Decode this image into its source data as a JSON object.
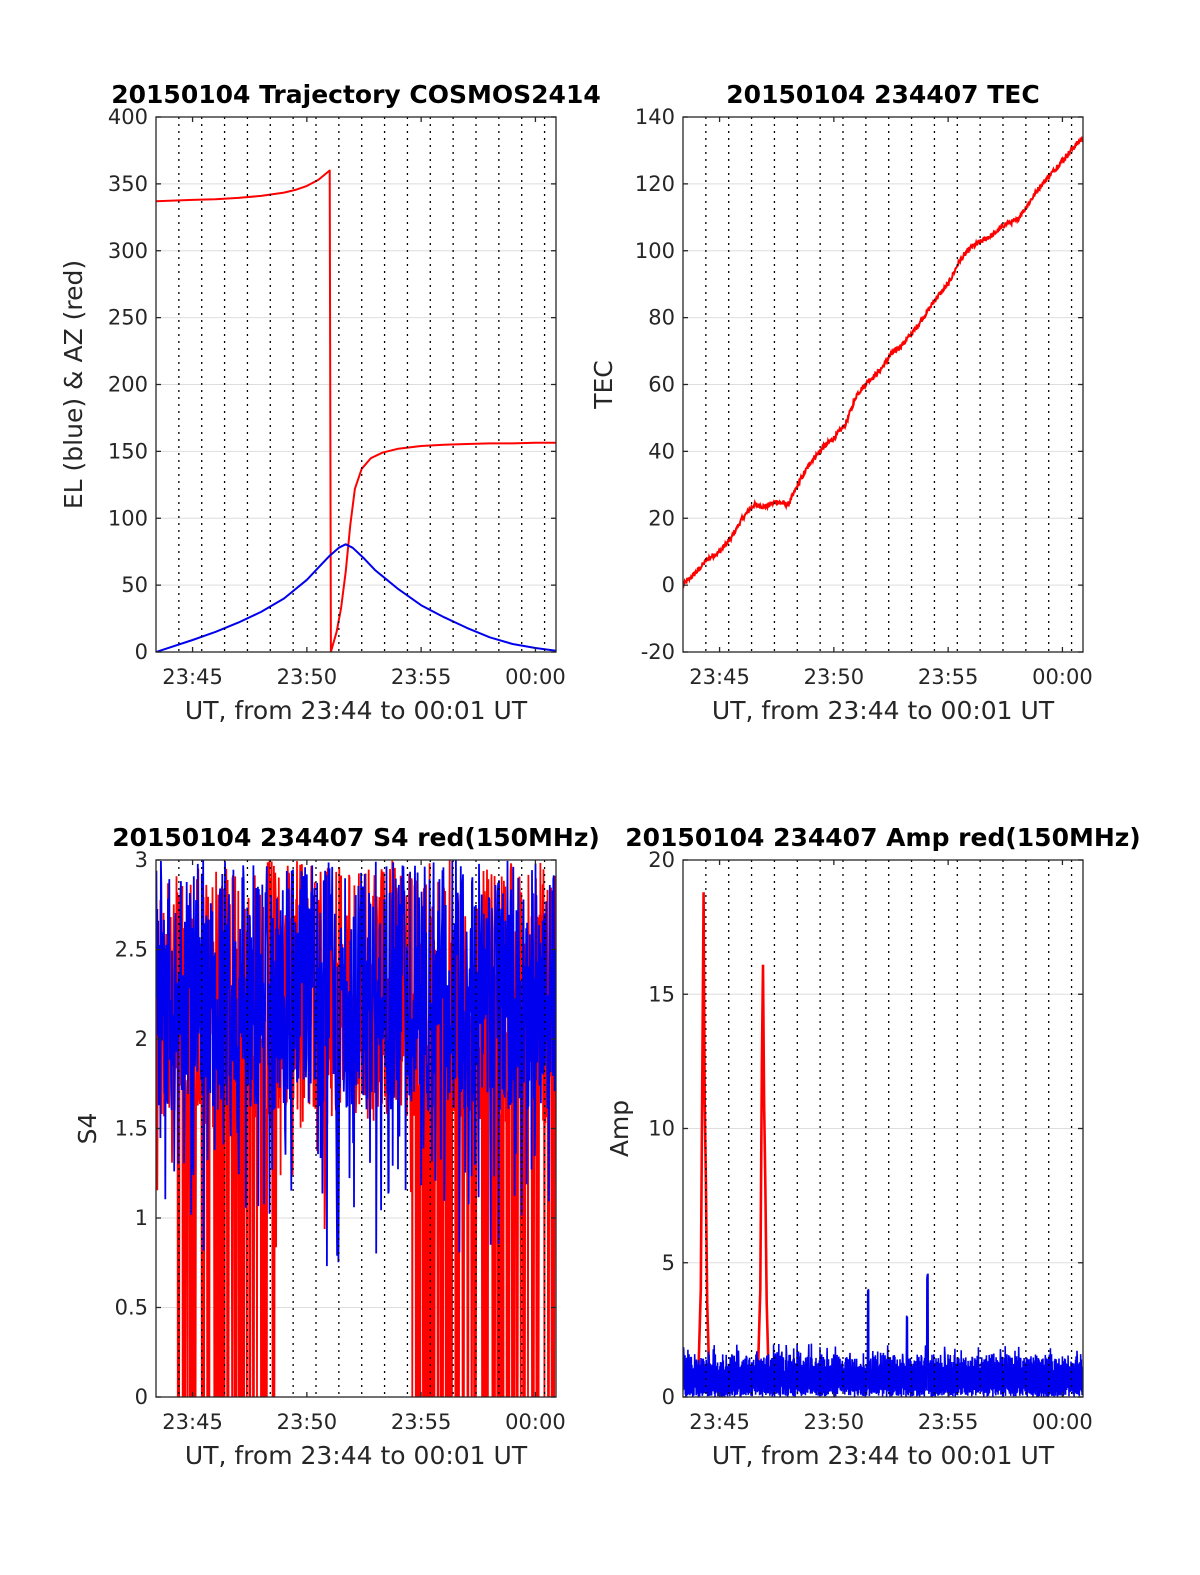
{
  "chart_data": [
    {
      "type": "line",
      "title": "20150104 Trajectory COSMOS2414",
      "xlabel": "UT, from 23:44 to 00:01 UT",
      "ylabel": "EL (blue) & AZ (red)",
      "xlim": [
        -0.6,
        16.9
      ],
      "ylim": [
        0,
        400
      ],
      "xticks": [
        1,
        6,
        11,
        16
      ],
      "xtick_labels": [
        "23:45",
        "23:50",
        "23:55",
        "00:00"
      ],
      "yticks": [
        0,
        50,
        100,
        150,
        200,
        250,
        300,
        350,
        400
      ],
      "vlines": [
        0.4,
        1.4,
        2.4,
        3.4,
        4.4,
        5.4,
        6.4,
        7.4,
        8.4,
        9.4,
        10.4,
        11.4,
        12.4,
        13.4,
        14.4,
        15.4,
        16.4
      ],
      "grid": true,
      "series": [
        {
          "color": "#ff0000",
          "x": [
            -0.6,
            1,
            2,
            3,
            4,
            5,
            5.5,
            6,
            6.5,
            7.0,
            7.05,
            7.1,
            7.3,
            7.5,
            7.7,
            7.9,
            8.1,
            8.4,
            8.8,
            9.3,
            10,
            11,
            12,
            13,
            14,
            15,
            16,
            16.9
          ],
          "y": [
            337,
            338,
            338.5,
            339.5,
            341,
            343.5,
            345.5,
            348.5,
            353,
            360,
            0,
            3,
            15,
            33,
            60,
            95,
            122,
            137,
            145,
            149,
            152,
            154,
            155,
            155.5,
            156,
            156,
            156.5,
            156.5
          ]
        },
        {
          "color": "#0000ee",
          "x": [
            -0.6,
            1,
            2,
            3,
            4,
            5,
            6,
            6.5,
            7,
            7.4,
            7.7,
            8.0,
            8.5,
            9,
            10,
            11,
            12,
            13,
            14,
            15,
            16,
            16.9
          ],
          "y": [
            0,
            9,
            15,
            22,
            30,
            40,
            54,
            63,
            72,
            78,
            80.5,
            78,
            70,
            61,
            47,
            35,
            26,
            18,
            11,
            6,
            3,
            1
          ]
        }
      ]
    },
    {
      "type": "line",
      "title": "20150104 234407 TEC",
      "xlabel": "UT, from 23:44 to 00:01 UT",
      "ylabel": "TEC",
      "xlim": [
        -0.6,
        16.9
      ],
      "ylim": [
        -20,
        140
      ],
      "xticks": [
        1,
        6,
        11,
        16
      ],
      "xtick_labels": [
        "23:45",
        "23:50",
        "23:55",
        "00:00"
      ],
      "yticks": [
        -20,
        0,
        20,
        40,
        60,
        80,
        100,
        120,
        140
      ],
      "vlines": [
        0.4,
        1.4,
        2.4,
        3.4,
        4.4,
        5.4,
        6.4,
        7.4,
        8.4,
        9.4,
        10.4,
        11.4,
        12.4,
        13.4,
        14.4,
        15.4,
        16.4
      ],
      "grid": true,
      "series": [
        {
          "color": "#ff0000",
          "x": [
            -0.6,
            0,
            0.5,
            1,
            1.5,
            2,
            2.5,
            3,
            3.5,
            4,
            4.5,
            5,
            5.5,
            6,
            6.5,
            7,
            7.5,
            8,
            8.5,
            9,
            9.5,
            10,
            10.5,
            11,
            11.5,
            12,
            12.5,
            13,
            13.5,
            14,
            14.5,
            15,
            15.5,
            16,
            16.5,
            16.9
          ],
          "y": [
            0,
            4,
            8,
            10,
            14,
            20,
            24,
            23.5,
            25,
            24,
            31,
            37,
            41,
            44,
            48,
            57,
            61,
            64,
            69,
            72,
            76,
            81,
            86,
            90,
            97,
            101,
            103,
            105,
            108,
            109,
            114,
            119,
            123,
            127,
            131,
            134
          ]
        }
      ]
    },
    {
      "type": "line",
      "title": "20150104 234407 S4 red(150MHz)",
      "xlabel": "UT, from 23:44 to 00:01 UT",
      "ylabel": "S4",
      "xlim": [
        -0.6,
        16.9
      ],
      "ylim": [
        0,
        3
      ],
      "xticks": [
        1,
        6,
        11,
        16
      ],
      "xtick_labels": [
        "23:45",
        "23:50",
        "23:55",
        "00:00"
      ],
      "yticks": [
        0,
        0.5,
        1,
        1.5,
        2,
        2.5,
        3
      ],
      "ytick_labels": [
        "0",
        "0.5",
        "1",
        "1.5",
        "2",
        "2.5",
        "3"
      ],
      "vlines": [
        0.4,
        1.4,
        2.4,
        3.4,
        4.4,
        5.4,
        6.4,
        7.4,
        8.4,
        9.4,
        10.4,
        11.4,
        12.4,
        13.4,
        14.4,
        15.4,
        16.4
      ],
      "grid": true,
      "series": [
        {
          "color": "#ff0000",
          "pattern": "dense noise, frequent drops to 0, mostly 1.5-3"
        },
        {
          "color": "#0000ee",
          "pattern": "dense noise between 1.2 and 3"
        }
      ]
    },
    {
      "type": "line",
      "title": "20150104 234407 Amp red(150MHz)",
      "xlabel": "UT, from 23:44 to 00:01 UT",
      "ylabel": "Amp",
      "xlim": [
        -0.6,
        16.9
      ],
      "ylim": [
        0,
        20
      ],
      "xticks": [
        1,
        6,
        11,
        16
      ],
      "xtick_labels": [
        "23:45",
        "23:50",
        "23:55",
        "00:00"
      ],
      "yticks": [
        0,
        5,
        10,
        15,
        20
      ],
      "vlines": [
        0.4,
        1.4,
        2.4,
        3.4,
        4.4,
        5.4,
        6.4,
        7.4,
        8.4,
        9.4,
        10.4,
        11.4,
        12.4,
        13.4,
        14.4,
        15.4,
        16.4
      ],
      "grid": true,
      "series": [
        {
          "color": "#ff0000",
          "peaks": [
            {
              "x": 0.3,
              "y": 18.8
            },
            {
              "x": 2.9,
              "y": 16.1
            }
          ]
        },
        {
          "color": "#0000ee",
          "baseline": 1.2,
          "peaks": [
            {
              "x": 7.5,
              "y": 4.0
            },
            {
              "x": 9.2,
              "y": 3.1
            },
            {
              "x": 10.1,
              "y": 4.6
            }
          ]
        }
      ]
    }
  ]
}
